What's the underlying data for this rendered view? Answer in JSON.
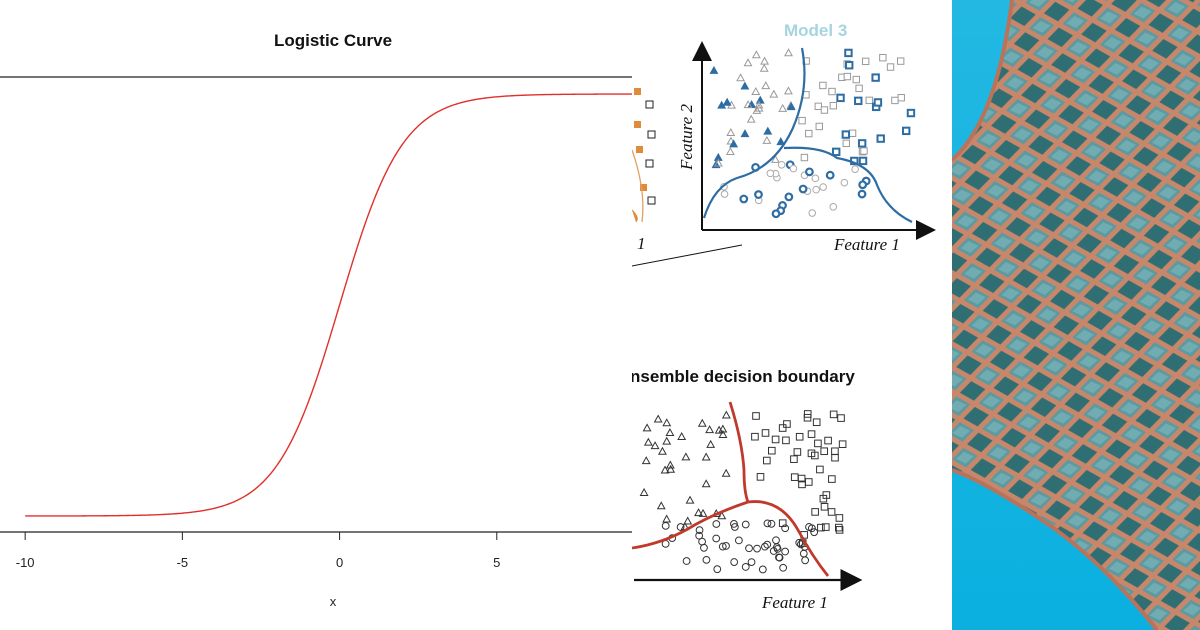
{
  "colors": {
    "curve": "#e0302a",
    "model_blue": "#2e6da4",
    "model_title": "#a6d4df",
    "boundary_red": "#c0392b",
    "orange_marker": "#e08a3c",
    "sky": "#18b5e0",
    "wood": "#b8735a"
  },
  "chart_data": {
    "type": "line",
    "title": "Logistic Curve",
    "xlabel": "x",
    "ylabel": "",
    "function": "1/(1+exp(-x))",
    "xlim": [
      -10.8,
      9.3
    ],
    "ylim": [
      0,
      1
    ],
    "xticks": [
      -10,
      -5,
      0,
      5
    ],
    "xtick_labels": [
      "-10",
      "-5",
      "0",
      "5"
    ],
    "series": [
      {
        "name": "logistic",
        "color": "#e0302a"
      }
    ]
  },
  "model3": {
    "title": "Model 3",
    "x_label": "Feature 1",
    "y_label": "Feature 2",
    "partial_x_label": "1"
  },
  "ensemble": {
    "title": "nsemble decision boundary",
    "x_label": "Feature 1"
  },
  "photo": {
    "description_icon": "architecture-photo-icon"
  }
}
